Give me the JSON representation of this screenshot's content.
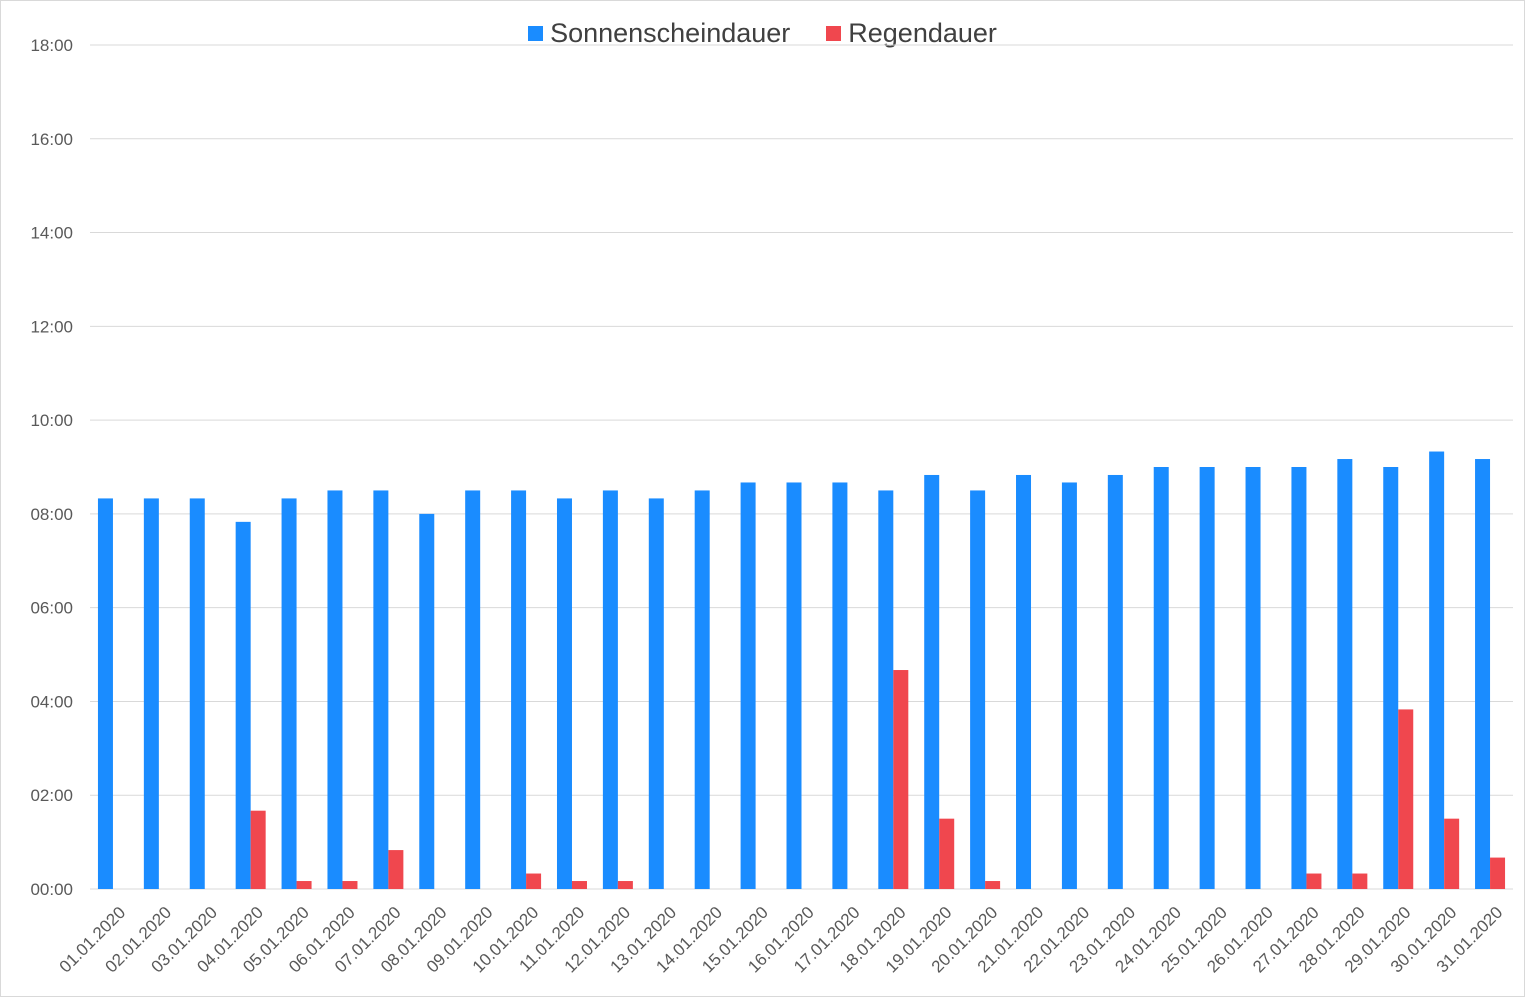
{
  "chart_data": {
    "type": "bar",
    "title": "",
    "xlabel": "",
    "ylabel": "",
    "ylim": [
      0,
      18
    ],
    "y_tick_labels": [
      "00:00",
      "02:00",
      "04:00",
      "06:00",
      "08:00",
      "10:00",
      "12:00",
      "14:00",
      "16:00",
      "18:00"
    ],
    "grid": true,
    "legend_position": "top-center",
    "categories": [
      "01.01.2020",
      "02.01.2020",
      "03.01.2020",
      "04.01.2020",
      "05.01.2020",
      "06.01.2020",
      "07.01.2020",
      "08.01.2020",
      "09.01.2020",
      "10.01.2020",
      "11.01.2020",
      "12.01.2020",
      "13.01.2020",
      "14.01.2020",
      "15.01.2020",
      "16.01.2020",
      "17.01.2020",
      "18.01.2020",
      "19.01.2020",
      "20.01.2020",
      "21.01.2020",
      "22.01.2020",
      "23.01.2020",
      "24.01.2020",
      "25.01.2020",
      "26.01.2020",
      "27.01.2020",
      "28.01.2020",
      "29.01.2020",
      "30.01.2020",
      "31.01.2020"
    ],
    "series": [
      {
        "name": "Sonnenscheindauer",
        "color": "#1a8cff",
        "values": [
          8.33,
          8.33,
          8.33,
          7.83,
          8.33,
          8.5,
          8.5,
          8.0,
          8.5,
          8.5,
          8.33,
          8.5,
          8.33,
          8.5,
          8.67,
          8.67,
          8.67,
          8.5,
          8.83,
          8.5,
          8.83,
          8.67,
          8.83,
          9.0,
          9.0,
          9.0,
          9.0,
          9.17,
          9.0,
          9.33,
          9.17
        ]
      },
      {
        "name": "Regendauer",
        "color": "#f0474e",
        "values": [
          0,
          0,
          0,
          1.67,
          0.17,
          0.17,
          0.83,
          0,
          0,
          0.33,
          0.17,
          0.17,
          0,
          0,
          0,
          0,
          0,
          4.67,
          1.5,
          0.17,
          0,
          0,
          0,
          0,
          0,
          0,
          0.33,
          0.33,
          3.83,
          1.5,
          0.67
        ]
      }
    ]
  }
}
